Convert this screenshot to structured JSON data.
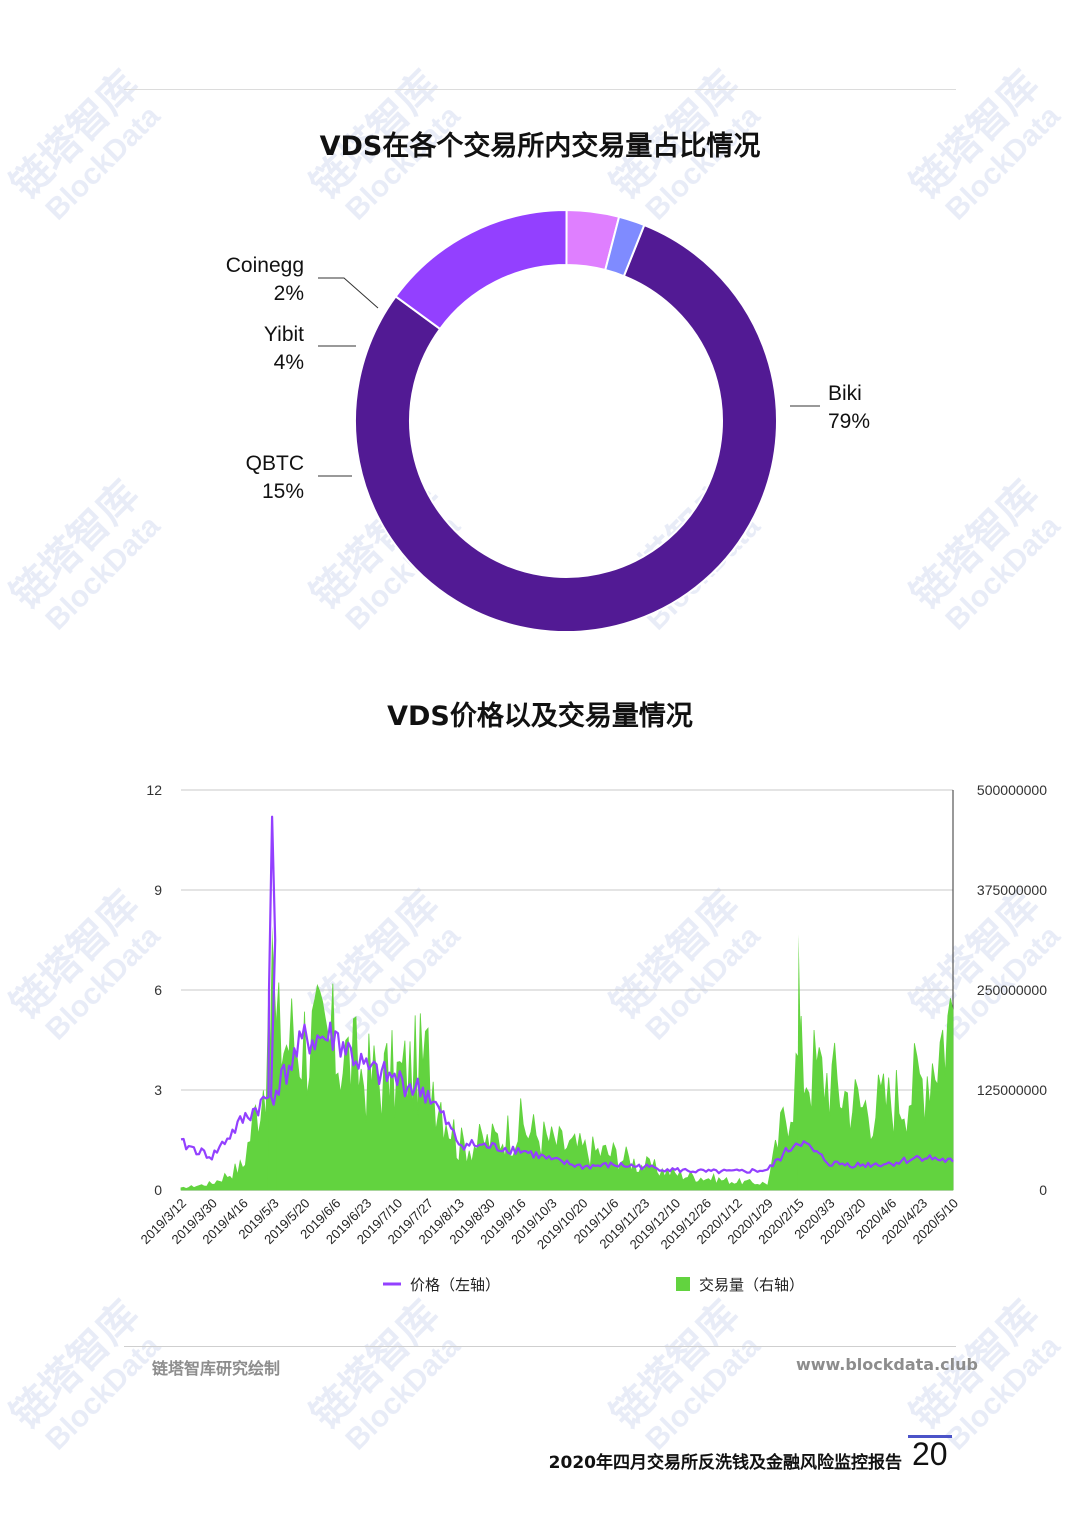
{
  "donut": {
    "title": "VDS在各个交易所内交易量占比情况",
    "slices": [
      {
        "name": "Biki",
        "pct": 79,
        "label": "79%",
        "color": "#521a94"
      },
      {
        "name": "QBTC",
        "pct": 15,
        "label": "15%",
        "color": "#9340ff"
      },
      {
        "name": "Yibit",
        "pct": 4,
        "label": "4%",
        "color": "#df7fff"
      },
      {
        "name": "Coinegg",
        "pct": 2,
        "label": "2%",
        "color": "#7f8bff"
      }
    ]
  },
  "chart_data": {
    "type": "area",
    "title": "VDS价格以及交易量情况",
    "categories": [
      "2019/3/12",
      "2019/3/30",
      "2019/4/16",
      "2019/5/3",
      "2019/5/20",
      "2019/6/6",
      "2019/6/23",
      "2019/7/10",
      "2019/7/27",
      "2019/8/13",
      "2019/8/30",
      "2019/9/16",
      "2019/10/3",
      "2019/10/20",
      "2019/11/6",
      "2019/11/23",
      "2019/12/10",
      "2019/12/26",
      "2020/1/12",
      "2020/1/29",
      "2020/2/15",
      "2020/3/3",
      "2020/3/20",
      "2020/4/6",
      "2020/4/23",
      "2020/5/10"
    ],
    "left_axis": {
      "ticks": [
        "0",
        "3",
        "6",
        "9",
        "12"
      ],
      "ylim": [
        0,
        12
      ]
    },
    "right_axis": {
      "ticks": [
        "0",
        "125000000",
        "250000000",
        "375000000",
        "500000000"
      ],
      "ylim": [
        0,
        500000000
      ]
    },
    "series": [
      {
        "name": "价格（左轴）",
        "axis": "left",
        "kind": "line",
        "color": "#9340ff",
        "values": [
          1.4,
          1.0,
          2.1,
          2.9,
          4.5,
          4.6,
          3.6,
          3.3,
          2.9,
          1.4,
          1.3,
          1.2,
          0.9,
          0.7,
          0.75,
          0.7,
          0.6,
          0.55,
          0.55,
          0.6,
          1.5,
          0.8,
          0.75,
          0.8,
          1.0,
          0.85
        ]
      },
      {
        "name": "交易量（右轴）",
        "axis": "right",
        "kind": "area",
        "color": "#62d33f",
        "values": [
          2000000,
          8000000,
          30000000,
          190000000,
          190000000,
          180000000,
          140000000,
          140000000,
          160000000,
          55000000,
          60000000,
          80000000,
          60000000,
          50000000,
          45000000,
          30000000,
          20000000,
          15000000,
          10000000,
          8000000,
          160000000,
          140000000,
          105000000,
          110000000,
          140000000,
          225000000
        ]
      }
    ],
    "peaks": [
      {
        "series": "价格（左轴）",
        "x": "2019/5/3",
        "value": 11.2
      },
      {
        "series": "交易量（右轴）",
        "x": "2020/2/15",
        "value": 320000000
      }
    ]
  },
  "footer": {
    "source": "链塔智库研究绘制",
    "website": "www.blockdata.club",
    "report_title": "2020年四月交易所反洗钱及金融风险监控报告",
    "page_number": "20"
  },
  "watermark": {
    "text_cn": "链塔智库",
    "text_en": "BlockData",
    "color": "#dfe4f5"
  }
}
